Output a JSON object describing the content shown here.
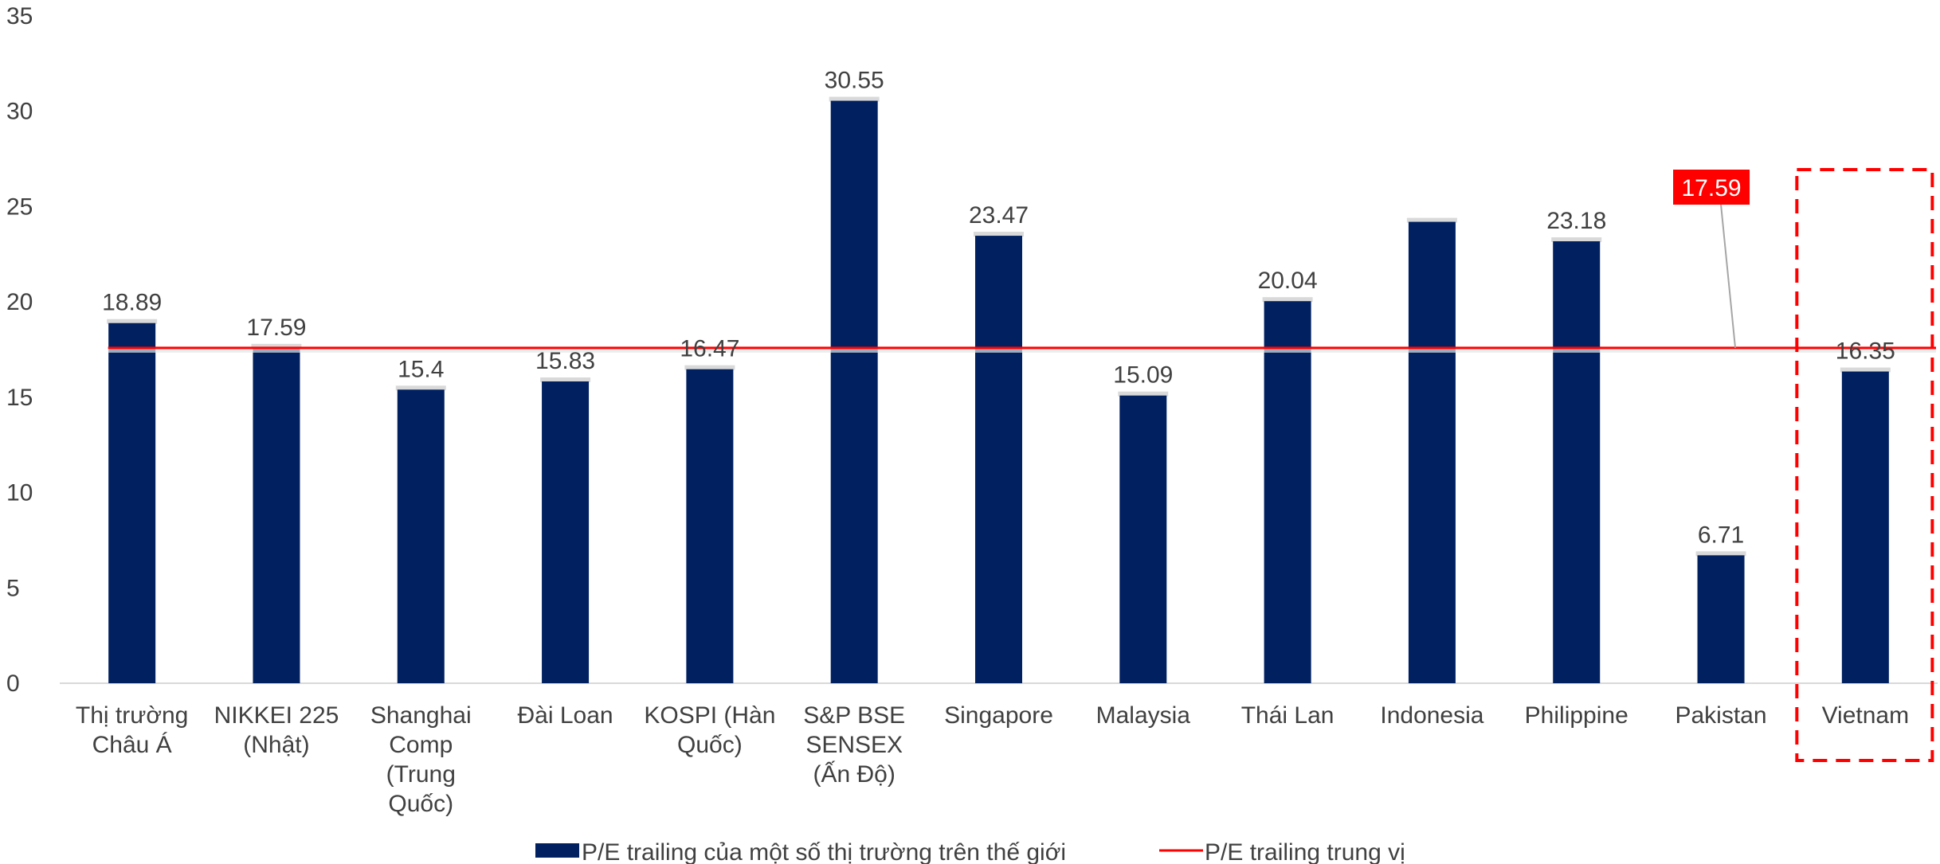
{
  "chart_data": {
    "type": "bar",
    "categories": [
      [
        "Thị trường",
        "Châu Á"
      ],
      [
        "NIKKEI 225",
        "(Nhật)"
      ],
      [
        "Shanghai",
        "Comp",
        "(Trung",
        "Quốc)"
      ],
      [
        "Đài Loan"
      ],
      [
        "KOSPI (Hàn",
        "Quốc)"
      ],
      [
        "S&P BSE",
        "SENSEX",
        "(Ấn Độ)"
      ],
      [
        "Singapore"
      ],
      [
        "Malaysia"
      ],
      [
        "Thái Lan"
      ],
      [
        "Indonesia"
      ],
      [
        "Philippine"
      ],
      [
        "Pakistan"
      ],
      [
        "Vietnam"
      ]
    ],
    "series": [
      {
        "name": "P/E trailing của một số thị trường trên thế giới",
        "type": "bar",
        "color": "#002060",
        "values": [
          18.89,
          17.59,
          15.4,
          15.83,
          16.47,
          30.55,
          23.47,
          15.09,
          20.04,
          24.2,
          23.18,
          6.71,
          16.35
        ],
        "labels": [
          "18.89",
          "17.59",
          "15.4",
          "15.83",
          "16.47",
          "30.55",
          "23.47",
          "15.09",
          "20.04",
          "",
          "23.18",
          "6.71",
          "16.35"
        ]
      },
      {
        "name": "P/E trailing trung vị",
        "type": "line",
        "color": "#ff0000",
        "value": 17.59
      }
    ],
    "callout": {
      "text": "17.59",
      "category_index": 11,
      "background": "#ff0000"
    },
    "highlight": {
      "category_index": 12,
      "style": "dashed",
      "color": "#ff0000"
    },
    "yaxis": {
      "ticks": [
        "0",
        "5",
        "10",
        "15",
        "20",
        "25",
        "30",
        "35"
      ],
      "range": [
        0,
        35
      ]
    },
    "title": "",
    "xlabel": "",
    "ylabel": "",
    "legend_position": "bottom",
    "grid": false
  }
}
